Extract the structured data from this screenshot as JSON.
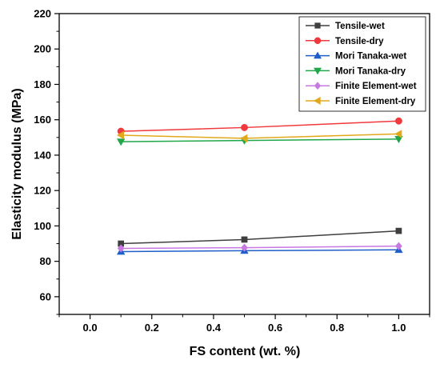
{
  "chart_data": {
    "type": "line",
    "xlabel": "FS content (wt. %)",
    "ylabel": "Elasticity modulus (MPa)",
    "xlim": [
      -0.1,
      1.1
    ],
    "ylim": [
      50,
      220
    ],
    "xticks": [
      0.0,
      0.2,
      0.4,
      0.6,
      0.8,
      1.0
    ],
    "xtick_labels": [
      "0.0",
      "0.2",
      "0.4",
      "0.6",
      "0.8",
      "1.0"
    ],
    "yticks": [
      60,
      80,
      100,
      120,
      140,
      160,
      180,
      200,
      220
    ],
    "ytick_labels": [
      "60",
      "80",
      "100",
      "120",
      "140",
      "160",
      "180",
      "200",
      "220"
    ],
    "grid": false,
    "legend_position": "top-right",
    "x": [
      0.1,
      0.5,
      1.0
    ],
    "series": [
      {
        "name": "Tensile-wet",
        "values": [
          90.0,
          92.3,
          97.2
        ],
        "color": "#3f3f3f",
        "marker": "square"
      },
      {
        "name": "Tensile-dry",
        "values": [
          153.5,
          155.6,
          159.3
        ],
        "color": "#f0393c",
        "marker": "circle"
      },
      {
        "name": "Mori Tanaka-wet",
        "values": [
          85.5,
          86.0,
          86.5
        ],
        "color": "#1f5ec9",
        "marker": "triangle-up"
      },
      {
        "name": "Mori Tanaka-dry",
        "values": [
          147.6,
          148.3,
          149.1
        ],
        "color": "#21a64a",
        "marker": "triangle-down"
      },
      {
        "name": "Finite Element-wet",
        "values": [
          87.3,
          87.7,
          88.6
        ],
        "color": "#c778e3",
        "marker": "diamond"
      },
      {
        "name": "Finite Element-dry",
        "values": [
          151.3,
          149.5,
          152.0
        ],
        "color": "#e2a81c",
        "marker": "triangle-left"
      }
    ]
  }
}
